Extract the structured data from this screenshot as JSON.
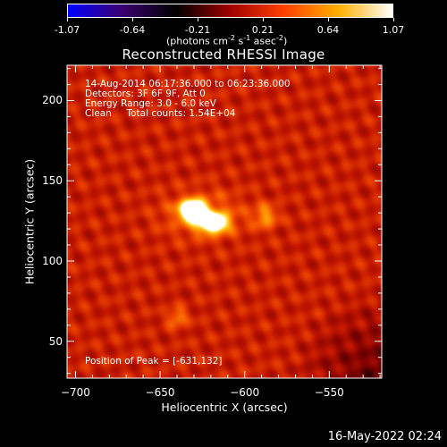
{
  "chart_data": {
    "type": "heatmap",
    "title": "Reconstructed RHESSI Image",
    "xlabel": "Heliocentric X (arcsec)",
    "ylabel": "Heliocentric Y (arcsec)",
    "xlim": [
      -705,
      -519
    ],
    "ylim": [
      27,
      222
    ],
    "x_ticks": [
      -700,
      -650,
      -600,
      -550
    ],
    "y_ticks": [
      50,
      100,
      150,
      200
    ],
    "colorbar": {
      "ticks": [
        "-1.07",
        "-0.64",
        "-0.21",
        "0.21",
        "0.64",
        "1.07"
      ],
      "range": [
        -1.07,
        1.07
      ],
      "units": {
        "base": "(photons cm",
        "e1": "-2",
        "mid1": " s",
        "e2": "-1",
        "mid2": " asec",
        "e3": "-2",
        "end": ")"
      },
      "colors": [
        "#0000ff",
        "#3a0070",
        "#000000",
        "#a00000",
        "#ff4000",
        "#ffb000",
        "#ffffff"
      ]
    },
    "annotations": {
      "time": "14-Aug-2014 06:17:36.000 to 06:23:36.000",
      "detectors": "Detectors: 3F 6F 9F, Att 0",
      "energy": "Energy Range: 3.0 - 6.0 keV",
      "method": "Clean     Total counts: 1.54E+04",
      "peak": "Position of Peak = [-631,132]"
    },
    "peak": {
      "x": -631,
      "y": 132
    },
    "sources": [
      {
        "x": -631,
        "y": 132,
        "sx": 5,
        "sy": 4,
        "amp": 1.0
      },
      {
        "x": -619,
        "y": 124,
        "sx": 6,
        "sy": 4,
        "amp": 0.85
      },
      {
        "x": -625,
        "y": 129,
        "sx": 16,
        "sy": 10,
        "amp": 0.25
      },
      {
        "x": -588,
        "y": 128,
        "sx": 5,
        "sy": 5,
        "amp": 0.32
      },
      {
        "x": -640,
        "y": 65,
        "sx": 4,
        "sy": 4,
        "amp": 0.3
      }
    ]
  },
  "footer": {
    "timestamp": "16-May-2022 02:24"
  }
}
